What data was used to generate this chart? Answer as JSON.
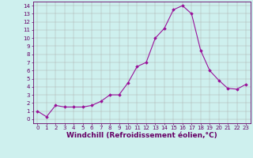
{
  "x": [
    0,
    1,
    2,
    3,
    4,
    5,
    6,
    7,
    8,
    9,
    10,
    11,
    12,
    13,
    14,
    15,
    16,
    17,
    18,
    19,
    20,
    21,
    22,
    23
  ],
  "y": [
    1,
    0.3,
    1.7,
    1.5,
    1.5,
    1.5,
    1.7,
    2.2,
    3.0,
    3.0,
    4.5,
    6.5,
    7.0,
    10.0,
    11.2,
    13.5,
    14.0,
    13.0,
    8.5,
    6.0,
    4.8,
    3.8,
    3.7,
    4.3
  ],
  "line_color": "#991199",
  "marker": "D",
  "marker_size": 1.8,
  "bg_color": "#cef0ee",
  "grid_color": "#aaaaaa",
  "xlabel": "Windchill (Refroidissement éolien,°C)",
  "xlabel_fontsize": 6.5,
  "ylabel_ticks": [
    0,
    1,
    2,
    3,
    4,
    5,
    6,
    7,
    8,
    9,
    10,
    11,
    12,
    13,
    14
  ],
  "xtick_labels": [
    "0",
    "1",
    "2",
    "3",
    "4",
    "5",
    "6",
    "7",
    "8",
    "9",
    "10",
    "11",
    "12",
    "13",
    "14",
    "15",
    "16",
    "17",
    "18",
    "19",
    "20",
    "21",
    "22",
    "23"
  ],
  "xlim": [
    -0.5,
    23.5
  ],
  "ylim": [
    -0.5,
    14.5
  ],
  "tick_fontsize": 5.0,
  "axis_color": "#660066",
  "spine_color": "#660066",
  "line_width": 0.8
}
